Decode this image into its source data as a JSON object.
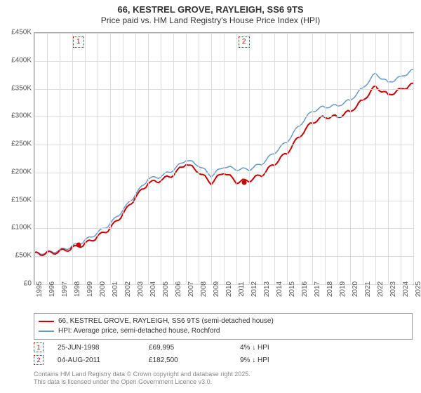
{
  "title": {
    "line1": "66, KESTREL GROVE, RAYLEIGH, SS6 9TS",
    "line2": "Price paid vs. HM Land Registry's House Price Index (HPI)"
  },
  "chart": {
    "type": "line",
    "background_color": "#ffffff",
    "grid_color": "#dddddd",
    "border_color": "#999999",
    "y": {
      "min": 0,
      "max": 450000,
      "step": 50000,
      "prefix": "£",
      "suffix": "K",
      "divisor": 1000
    },
    "x": {
      "years": [
        1995,
        1996,
        1997,
        1998,
        1999,
        2000,
        2001,
        2002,
        2003,
        2004,
        2005,
        2006,
        2007,
        2008,
        2009,
        2010,
        2011,
        2012,
        2013,
        2014,
        2015,
        2016,
        2017,
        2018,
        2019,
        2020,
        2021,
        2022,
        2023,
        2024,
        2025
      ]
    },
    "series": [
      {
        "id": "price_paid",
        "label": "66, KESTREL GROVE, RAYLEIGH, SS6 9TS (semi-detached house)",
        "color": "#cc0000",
        "line_width": 2,
        "data_by_year": {
          "1995": 55000,
          "1996": 56000,
          "1997": 59000,
          "1998": 65000,
          "1999": 72000,
          "2000": 85000,
          "2001": 100000,
          "2002": 125000,
          "2003": 155000,
          "2004": 180000,
          "2005": 185000,
          "2006": 195000,
          "2007": 215000,
          "2008": 200000,
          "2009": 180000,
          "2010": 200000,
          "2011": 182000,
          "2012": 185000,
          "2013": 195000,
          "2014": 215000,
          "2015": 235000,
          "2016": 265000,
          "2017": 290000,
          "2018": 300000,
          "2019": 300000,
          "2020": 310000,
          "2021": 330000,
          "2022": 355000,
          "2023": 340000,
          "2024": 350000,
          "2025": 360000
        }
      },
      {
        "id": "hpi",
        "label": "HPI: Average price, semi-detached house, Rochford",
        "color": "#6699cc",
        "line_width": 1.5,
        "data_by_year": {
          "1995": 56000,
          "1996": 57000,
          "1997": 61000,
          "1998": 68000,
          "1999": 78000,
          "2000": 92000,
          "2001": 108000,
          "2002": 132000,
          "2003": 160000,
          "2004": 188000,
          "2005": 192000,
          "2006": 204000,
          "2007": 222000,
          "2008": 212000,
          "2009": 193000,
          "2010": 210000,
          "2011": 205000,
          "2012": 205000,
          "2013": 215000,
          "2014": 235000,
          "2015": 255000,
          "2016": 285000,
          "2017": 310000,
          "2018": 318000,
          "2019": 320000,
          "2020": 330000,
          "2021": 352000,
          "2022": 378000,
          "2023": 362000,
          "2024": 372000,
          "2025": 385000
        }
      }
    ],
    "sale_markers": [
      {
        "num": "1",
        "year": 1998.48,
        "price": 69995,
        "date_label": "25-JUN-1998",
        "price_label": "£69,995",
        "pct_label": "4% ↓ HPI"
      },
      {
        "num": "2",
        "year": 2011.59,
        "price": 182500,
        "date_label": "04-AUG-2011",
        "price_label": "£182,500",
        "pct_label": "9% ↓ HPI"
      }
    ]
  },
  "footer": {
    "line1": "Contains HM Land Registry data © Crown copyright and database right 2025.",
    "line2": "This data is licensed under the Open Government Licence v3.0."
  },
  "styling": {
    "title_fontsize": 13,
    "subtitle_fontsize": 12,
    "tick_fontsize": 10,
    "legend_fontsize": 10,
    "footer_fontsize": 9,
    "text_color": "#333333",
    "muted_text_color": "#888888",
    "marker_border_color": "#cc0000"
  }
}
